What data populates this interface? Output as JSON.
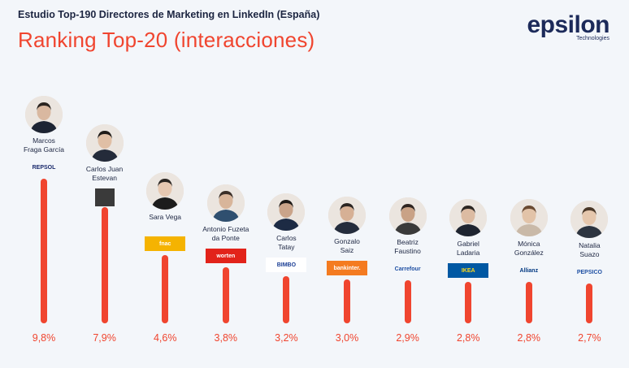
{
  "header": {
    "subtitle": "Estudio Top-190 Directores de Marketing en LinkedIn (España)",
    "title": "Ranking Top-20 (interacciones)"
  },
  "logo": {
    "name": "epsilon",
    "tagline": "Technologies"
  },
  "chart_data": {
    "type": "bar",
    "categories": [
      "Marcos Fraga García",
      "Carlos Juan Estevan",
      "Sara Vega",
      "Antonio Fuzeta da Ponte",
      "Carlos Tatay",
      "Gonzalo Saiz",
      "Beatriz Faustino",
      "Gabriel Ladaria",
      "Mónica González",
      "Natalia Suazo"
    ],
    "values": [
      9.8,
      7.9,
      4.6,
      3.8,
      3.2,
      3.0,
      2.9,
      2.8,
      2.8,
      2.7
    ],
    "value_labels": [
      "9,8%",
      "7,9%",
      "4,6%",
      "3,8%",
      "3,2%",
      "3,0%",
      "2,9%",
      "2,8%",
      "2,8%",
      "2,7%"
    ],
    "bar_color": "#f0452f"
  },
  "people": [
    {
      "name_lines": [
        "Marcos",
        "Fraga García"
      ],
      "brand": "REPSOL",
      "brand_color": "#1a2a6c",
      "brand_bg": "transparent"
    },
    {
      "name_lines": [
        "Carlos Juan",
        "Estevan"
      ],
      "brand": "",
      "brand_color": "#ffffff",
      "brand_bg": "#3a3a3a"
    },
    {
      "name_lines": [
        "Sara Vega",
        ""
      ],
      "brand": "fnac",
      "brand_color": "#ffffff",
      "brand_bg": "#f5b301"
    },
    {
      "name_lines": [
        "Antonio Fuzeta",
        "da Ponte"
      ],
      "brand": "worten",
      "brand_color": "#ffffff",
      "brand_bg": "#e2231a"
    },
    {
      "name_lines": [
        "Carlos",
        "Tatay"
      ],
      "brand": "BIMBO",
      "brand_color": "#1c3f95",
      "brand_bg": "#ffffff"
    },
    {
      "name_lines": [
        "Gonzalo",
        "Saiz"
      ],
      "brand": "bankinter.",
      "brand_color": "#ffffff",
      "brand_bg": "#f47b20"
    },
    {
      "name_lines": [
        "Beatriz",
        "Faustino"
      ],
      "brand": "Carrefour",
      "brand_color": "#1e4fa3",
      "brand_bg": "transparent"
    },
    {
      "name_lines": [
        "Gabriel",
        "Ladaria"
      ],
      "brand": "IKEA",
      "brand_color": "#ffda1a",
      "brand_bg": "#0058a3"
    },
    {
      "name_lines": [
        "Mónica",
        "González"
      ],
      "brand": "Allianz",
      "brand_color": "#003781",
      "brand_bg": "transparent"
    },
    {
      "name_lines": [
        "Natalia",
        "Suazo"
      ],
      "brand": "PEPSICO",
      "brand_color": "#1e4fa3",
      "brand_bg": "transparent"
    }
  ]
}
